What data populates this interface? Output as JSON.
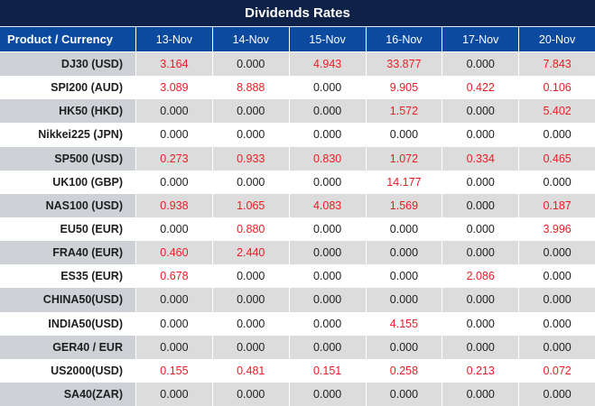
{
  "title": "Dividends Rates",
  "chart_data": {
    "type": "table",
    "title": "Dividends Rates",
    "product_header": "Product / Currency",
    "date_headers": [
      "13-Nov",
      "14-Nov",
      "15-Nov",
      "16-Nov",
      "17-Nov",
      "20-Nov"
    ],
    "rows": [
      {
        "product": "DJ30 (USD)",
        "values": [
          "3.164",
          "0.000",
          "4.943",
          "33.877",
          "0.000",
          "7.843"
        ]
      },
      {
        "product": "SPI200 (AUD)",
        "values": [
          "3.089",
          "8.888",
          "0.000",
          "9.905",
          "0.422",
          "0.106"
        ]
      },
      {
        "product": "HK50 (HKD)",
        "values": [
          "0.000",
          "0.000",
          "0.000",
          "1.572",
          "0.000",
          "5.402"
        ]
      },
      {
        "product": "Nikkei225 (JPN)",
        "values": [
          "0.000",
          "0.000",
          "0.000",
          "0.000",
          "0.000",
          "0.000"
        ]
      },
      {
        "product": "SP500 (USD)",
        "values": [
          "0.273",
          "0.933",
          "0.830",
          "1.072",
          "0.334",
          "0.465"
        ]
      },
      {
        "product": "UK100 (GBP)",
        "values": [
          "0.000",
          "0.000",
          "0.000",
          "14.177",
          "0.000",
          "0.000"
        ]
      },
      {
        "product": "NAS100 (USD)",
        "values": [
          "0.938",
          "1.065",
          "4.083",
          "1.569",
          "0.000",
          "0.187"
        ]
      },
      {
        "product": "EU50 (EUR)",
        "values": [
          "0.000",
          "0.880",
          "0.000",
          "0.000",
          "0.000",
          "3.996"
        ]
      },
      {
        "product": "FRA40 (EUR)",
        "values": [
          "0.460",
          "2.440",
          "0.000",
          "0.000",
          "0.000",
          "0.000"
        ]
      },
      {
        "product": "ES35 (EUR)",
        "values": [
          "0.678",
          "0.000",
          "0.000",
          "0.000",
          "2.086",
          "0.000"
        ]
      },
      {
        "product": "CHINA50(USD)",
        "values": [
          "0.000",
          "0.000",
          "0.000",
          "0.000",
          "0.000",
          "0.000"
        ]
      },
      {
        "product": "INDIA50(USD)",
        "values": [
          "0.000",
          "0.000",
          "0.000",
          "4.155",
          "0.000",
          "0.000"
        ]
      },
      {
        "product": "GER40 / EUR",
        "values": [
          "0.000",
          "0.000",
          "0.000",
          "0.000",
          "0.000",
          "0.000"
        ]
      },
      {
        "product": "US2000(USD)",
        "values": [
          "0.155",
          "0.481",
          "0.151",
          "0.258",
          "0.213",
          "0.072"
        ]
      },
      {
        "product": "SA40(ZAR)",
        "values": [
          "0.000",
          "0.000",
          "0.000",
          "0.000",
          "0.000",
          "0.000"
        ]
      }
    ],
    "layout": {
      "striped_rows": "odd rows gray, even rows white",
      "nonzero_values_colored_red": true
    }
  },
  "colors": {
    "title_bg": "#0e2247",
    "header_bg": "#0c4aa0",
    "stripe_label_bg": "#ced2d6",
    "stripe_data_bg": "#dcdcdc",
    "nonzero_value_text": "#ec1c24",
    "zero_value_text": "#1e1e1e"
  }
}
